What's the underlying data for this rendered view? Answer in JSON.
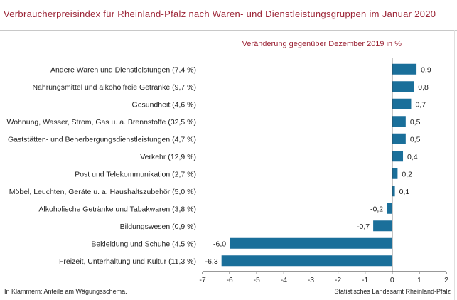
{
  "title": "Verbraucherpreisindex für Rheinland-Pfalz nach Waren- und Dienstleistungsgruppen im Januar 2020",
  "footnote": "In Klammern: Anteile am Wägungsschema.",
  "source": "Statistisches Landesamt Rheinland-Pfalz",
  "chart_data": {
    "type": "bar",
    "orientation": "horizontal",
    "subtitle": "Veränderung gegenüber Dezember 2019 in %",
    "categories": [
      "Andere Waren und Dienstleistungen (7,4 %)",
      "Nahrungsmittel und alkoholfreie Getränke (9,7 %)",
      "Gesundheit (4,6 %)",
      "Wohnung, Wasser, Strom, Gas u. a. Brennstoffe (32,5 %)",
      "Gaststätten- und Beherbergungsdienstleistungen (4,7 %)",
      "Verkehr (12,9 %)",
      "Post und Telekommunikation (2,7 %)",
      "Möbel, Leuchten, Geräte u. a. Haushaltszubehör (5,0 %)",
      "Alkoholische Getränke und Tabakwaren (3,8 %)",
      "Bildungswesen (0,9 %)",
      "Bekleidung und Schuhe (4,5 %)",
      "Freizeit, Unterhaltung und Kultur (11,3 %)"
    ],
    "values": [
      0.9,
      0.8,
      0.7,
      0.5,
      0.5,
      0.4,
      0.2,
      0.1,
      -0.2,
      -0.7,
      -6.0,
      -6.3
    ],
    "value_labels": [
      "0,9",
      "0,8",
      "0,7",
      "0,5",
      "0,5",
      "0,4",
      "0,2",
      "0,1",
      "-0,2",
      "-0,7",
      "-6,0",
      "-6,3"
    ],
    "xlim": [
      -7,
      2
    ],
    "xticks": [
      -7,
      -6,
      -5,
      -4,
      -3,
      -2,
      -1,
      0,
      1,
      2
    ],
    "xtick_labels": [
      "-7",
      "-6",
      "-5",
      "-4",
      "-3",
      "-2",
      "-1",
      "0",
      "1",
      "2"
    ],
    "bar_color": "#1a6f9a",
    "grid": false
  }
}
